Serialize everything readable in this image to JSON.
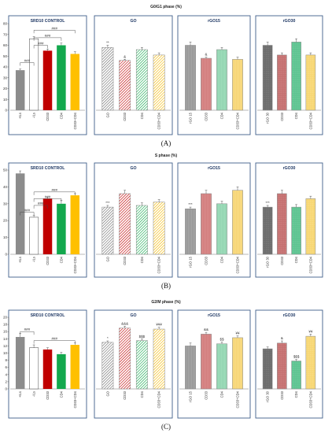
{
  "panels_figure": {
    "colors": {
      "grey": "#8c8c8c",
      "white": "#ffffff",
      "red": "#c00000",
      "green": "#13a84d",
      "yellow": "#ffc000",
      "box": "#3f5f8a",
      "stitle": "#1f3864"
    }
  },
  "chart_data": [
    {
      "type": "bar",
      "panel_label": "(A)",
      "title": "G0/G1 phase (%)",
      "ylim": [
        0,
        80
      ],
      "yticks": [
        0,
        10,
        20,
        30,
        40,
        50,
        60,
        70,
        80
      ],
      "groups": [
        {
          "name": "SRD10 CONTROL",
          "bars": [
            {
              "label": "+ILs",
              "value": 37,
              "err": 1,
              "color": "grey",
              "pattern": "solid"
            },
            {
              "label": "-ILs",
              "value": 66,
              "err": 2,
              "color": "white",
              "pattern": "solid"
            },
            {
              "label": "CD33",
              "value": 55,
              "err": 1.5,
              "color": "red",
              "pattern": "solid"
            },
            {
              "label": "CD4",
              "value": 60,
              "err": 2,
              "color": "green",
              "pattern": "solid"
            },
            {
              "label": "CD33+CD4",
              "value": 52,
              "err": 2,
              "color": "yellow",
              "pattern": "solid"
            }
          ]
        },
        {
          "name": "GO",
          "bars": [
            {
              "label": "GO",
              "value": 58,
              "err": 2,
              "color": "grey",
              "pattern": "hatch",
              "annotation": "**"
            },
            {
              "label": "CD33",
              "value": 46,
              "err": 1,
              "color": "red",
              "pattern": "hatch",
              "annotation": "&"
            },
            {
              "label": "CD4",
              "value": 56,
              "err": 2,
              "color": "green",
              "pattern": "hatch"
            },
            {
              "label": "CD33+CD4",
              "value": 51,
              "err": 2,
              "color": "yellow",
              "pattern": "hatch"
            }
          ]
        },
        {
          "name": "rGO15",
          "bars": [
            {
              "label": "rGO 15",
              "value": 60,
              "err": 3,
              "color": "grey",
              "pattern": "grid"
            },
            {
              "label": "CD33",
              "value": 48,
              "err": 1,
              "color": "red",
              "pattern": "grid",
              "annotation": "&"
            },
            {
              "label": "CD4",
              "value": 56,
              "err": 2,
              "color": "green",
              "pattern": "grid"
            },
            {
              "label": "CD33+CD4",
              "value": 47,
              "err": 2,
              "color": "yellow",
              "pattern": "grid"
            }
          ]
        },
        {
          "name": "rGO30",
          "bars": [
            {
              "label": "rGO 30",
              "value": 60,
              "err": 3,
              "color": "grey",
              "pattern": "dots"
            },
            {
              "label": "CD33",
              "value": 51,
              "err": 2,
              "color": "red",
              "pattern": "dots"
            },
            {
              "label": "CD4",
              "value": 63,
              "err": 3,
              "color": "green",
              "pattern": "dots"
            },
            {
              "label": "CD33+CD4",
              "value": 51,
              "err": 2,
              "color": "yellow",
              "pattern": "dots"
            }
          ]
        }
      ],
      "brackets": [
        {
          "group": 0,
          "from": 0,
          "to": 1,
          "y": 44,
          "text": "###"
        },
        {
          "group": 0,
          "from": 1,
          "to": 2,
          "y": 60,
          "text": "###"
        },
        {
          "group": 0,
          "from": 1,
          "to": 3,
          "y": 67,
          "text": "###"
        },
        {
          "group": 0,
          "from": 1,
          "to": 4,
          "y": 74,
          "text": "###"
        }
      ]
    },
    {
      "type": "bar",
      "panel_label": "(B)",
      "title": "S phase (%)",
      "ylim": [
        0,
        50
      ],
      "yticks": [
        0,
        10,
        20,
        30,
        40,
        50
      ],
      "groups": [
        {
          "name": "SRD10 CONTROL",
          "bars": [
            {
              "label": "+ILs",
              "value": 48,
              "err": 1.5,
              "color": "grey",
              "pattern": "solid"
            },
            {
              "label": "-ILs",
              "value": 22,
              "err": 1,
              "color": "white",
              "pattern": "solid"
            },
            {
              "label": "CD33",
              "value": 33,
              "err": 1,
              "color": "red",
              "pattern": "solid"
            },
            {
              "label": "CD4",
              "value": 30,
              "err": 2,
              "color": "green",
              "pattern": "solid"
            },
            {
              "label": "CD33+CD4",
              "value": 35,
              "err": 1,
              "color": "yellow",
              "pattern": "solid"
            }
          ]
        },
        {
          "name": "GO",
          "bars": [
            {
              "label": "GO",
              "value": 28,
              "err": 1,
              "color": "grey",
              "pattern": "hatch",
              "annotation": "***"
            },
            {
              "label": "CD33",
              "value": 36,
              "err": 2,
              "color": "red",
              "pattern": "hatch"
            },
            {
              "label": "CD4",
              "value": 29,
              "err": 1.5,
              "color": "green",
              "pattern": "hatch"
            },
            {
              "label": "CD33+CD4",
              "value": 31,
              "err": 1.5,
              "color": "yellow",
              "pattern": "hatch"
            }
          ]
        },
        {
          "name": "rGO15",
          "bars": [
            {
              "label": "rGO 15",
              "value": 27,
              "err": 1,
              "color": "grey",
              "pattern": "grid",
              "annotation": "***"
            },
            {
              "label": "CD33",
              "value": 36,
              "err": 2,
              "color": "red",
              "pattern": "grid"
            },
            {
              "label": "CD4",
              "value": 30,
              "err": 1.5,
              "color": "green",
              "pattern": "grid"
            },
            {
              "label": "CD33+CD4",
              "value": 38,
              "err": 2,
              "color": "yellow",
              "pattern": "grid"
            }
          ]
        },
        {
          "name": "rGO30",
          "bars": [
            {
              "label": "rGO 30",
              "value": 28,
              "err": 1,
              "color": "grey",
              "pattern": "dots",
              "annotation": "***"
            },
            {
              "label": "CD33",
              "value": 36,
              "err": 2,
              "color": "red",
              "pattern": "dots"
            },
            {
              "label": "CD4",
              "value": 28,
              "err": 1.5,
              "color": "green",
              "pattern": "dots"
            },
            {
              "label": "CD33+CD4",
              "value": 33,
              "err": 1.5,
              "color": "yellow",
              "pattern": "dots"
            }
          ]
        }
      ],
      "brackets": [
        {
          "group": 0,
          "from": 0,
          "to": 1,
          "y": 25,
          "text": "###"
        },
        {
          "group": 0,
          "from": 1,
          "to": 2,
          "y": 29,
          "text": "###"
        },
        {
          "group": 0,
          "from": 1,
          "to": 3,
          "y": 33,
          "text": "###"
        },
        {
          "group": 0,
          "from": 1,
          "to": 4,
          "y": 37,
          "text": "###"
        }
      ]
    },
    {
      "type": "bar",
      "panel_label": "(C)",
      "title": "G2/M phase (%)",
      "ylim": [
        0,
        20
      ],
      "yticks": [
        0,
        2,
        4,
        6,
        8,
        10,
        12,
        14,
        16,
        18,
        20
      ],
      "groups": [
        {
          "name": "SRD10 CONTROL",
          "bars": [
            {
              "label": "+ILs",
              "value": 14.5,
              "err": 1,
              "color": "grey",
              "pattern": "solid"
            },
            {
              "label": "-ILs",
              "value": 11.5,
              "err": 0.8,
              "color": "white",
              "pattern": "solid"
            },
            {
              "label": "CD33",
              "value": 11,
              "err": 0.5,
              "color": "red",
              "pattern": "solid"
            },
            {
              "label": "CD4",
              "value": 9.7,
              "err": 0.5,
              "color": "green",
              "pattern": "solid"
            },
            {
              "label": "CD33+CD4",
              "value": 12.3,
              "err": 0.5,
              "color": "yellow",
              "pattern": "solid"
            }
          ]
        },
        {
          "name": "GO",
          "bars": [
            {
              "label": "GO",
              "value": 13,
              "err": 0.4,
              "color": "grey",
              "pattern": "hatch",
              "annotation": "*"
            },
            {
              "label": "CD33",
              "value": 17,
              "err": 0.5,
              "color": "red",
              "pattern": "hatch",
              "annotation": "&&&"
            },
            {
              "label": "CD4",
              "value": 13.5,
              "err": 0.4,
              "color": "green",
              "pattern": "hatch",
              "annotation": "$$$"
            },
            {
              "label": "CD33+CD4",
              "value": 16.7,
              "err": 0.5,
              "color": "yellow",
              "pattern": "hatch",
              "annotation": "¥¥¥"
            }
          ]
        },
        {
          "name": "rGO15",
          "bars": [
            {
              "label": "rGO 15",
              "value": 12,
              "err": 0.8,
              "color": "grey",
              "pattern": "grid"
            },
            {
              "label": "CD33",
              "value": 15.3,
              "err": 0.5,
              "color": "red",
              "pattern": "grid",
              "annotation": "&&"
            },
            {
              "label": "CD4",
              "value": 12.6,
              "err": 0.5,
              "color": "green",
              "pattern": "grid",
              "annotation": "$$"
            },
            {
              "label": "CD33+CD4",
              "value": 14.3,
              "err": 0.5,
              "color": "yellow",
              "pattern": "grid",
              "annotation": "¥¥"
            }
          ]
        },
        {
          "name": "rGO30",
          "bars": [
            {
              "label": "rGO 30",
              "value": 11.2,
              "err": 0.5,
              "color": "grey",
              "pattern": "dots"
            },
            {
              "label": "CD33",
              "value": 12.8,
              "err": 0.6,
              "color": "red",
              "pattern": "dots",
              "annotation": "&"
            },
            {
              "label": "CD4",
              "value": 7.8,
              "err": 0.4,
              "color": "green",
              "pattern": "dots",
              "annotation": "$$$"
            },
            {
              "label": "CD33+CD4",
              "value": 14.7,
              "err": 0.6,
              "color": "yellow",
              "pattern": "dots",
              "annotation": "¥¥"
            }
          ]
        }
      ],
      "brackets": [
        {
          "group": 0,
          "from": 0,
          "to": 1,
          "y": 16,
          "text": "###"
        },
        {
          "group": 0,
          "from": 1,
          "to": 4,
          "y": 13.5,
          "text": "###"
        }
      ]
    }
  ]
}
